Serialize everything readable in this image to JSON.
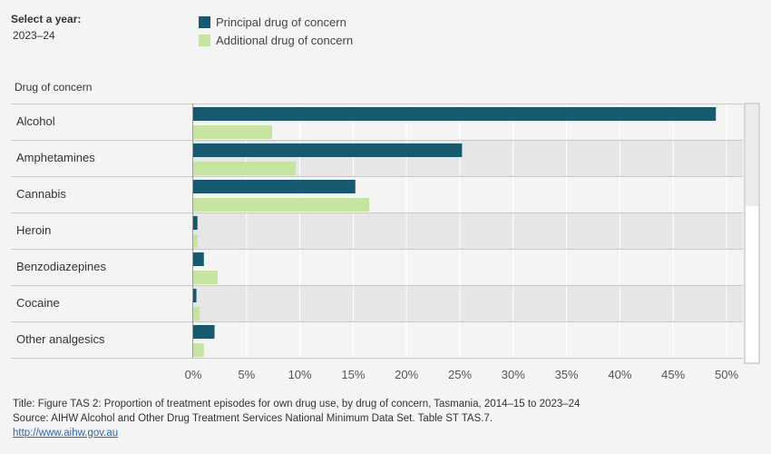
{
  "filter": {
    "label": "Select a year:",
    "value": "2023–24"
  },
  "legend": [
    {
      "name": "Principal drug of concern",
      "color": "#17596e"
    },
    {
      "name": "Additional drug of concern",
      "color": "#c4e4a0"
    }
  ],
  "row_header": "Drug of concern",
  "chart_data": {
    "type": "bar",
    "orientation": "horizontal",
    "categories": [
      "Alcohol",
      "Amphetamines",
      "Cannabis",
      "Heroin",
      "Benzodiazepines",
      "Cocaine",
      "Other analgesics"
    ],
    "series": [
      {
        "name": "Principal drug of concern",
        "color": "#17596e",
        "values": [
          49.0,
          25.2,
          15.2,
          0.4,
          1.0,
          0.3,
          2.0
        ]
      },
      {
        "name": "Additional drug of concern",
        "color": "#c4e4a0",
        "values": [
          7.4,
          9.6,
          16.5,
          0.4,
          2.3,
          0.6,
          1.0
        ]
      }
    ],
    "xlim": [
      0,
      51.5
    ],
    "xticks": [
      0,
      5,
      10,
      15,
      20,
      25,
      30,
      35,
      40,
      45,
      50
    ],
    "xtick_labels": [
      "0%",
      "5%",
      "10%",
      "15%",
      "20%",
      "25%",
      "30%",
      "35%",
      "40%",
      "45%",
      "50%"
    ],
    "grid": true
  },
  "footer": {
    "title": "Title: Figure TAS 2: Proportion of treatment episodes for own drug use, by drug of concern, Tasmania, 2014–15 to 2023–24",
    "source": "Source: AIHW Alcohol and Other Drug Treatment Services National Minimum Data Set. Table ST TAS.7.",
    "link": "http://www.aihw.gov.au"
  }
}
